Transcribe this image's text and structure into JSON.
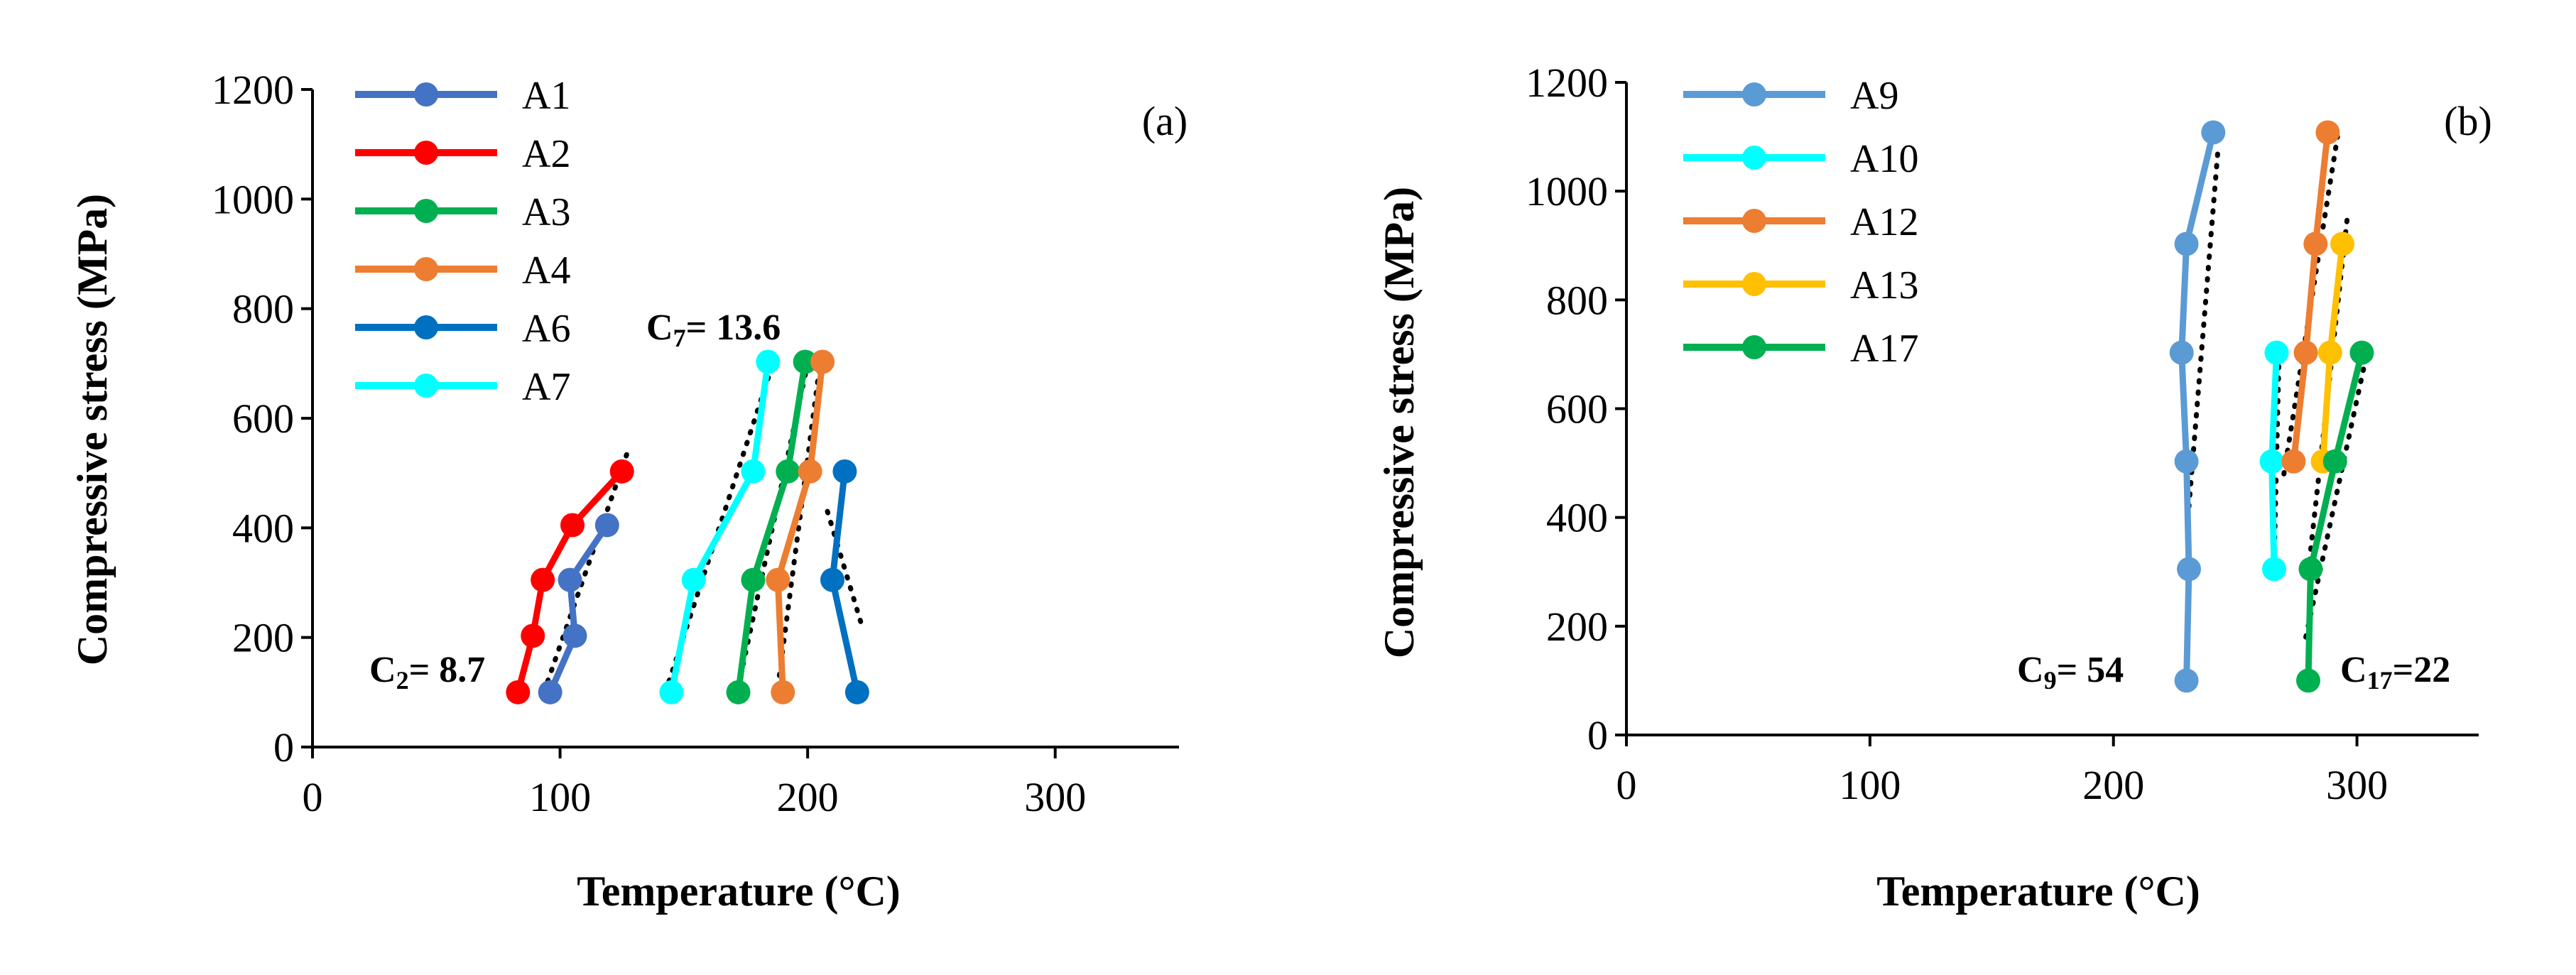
{
  "chart_data": [
    {
      "type": "line",
      "panel_label": "(a)",
      "xlabel": "Temperature (°C)",
      "ylabel": "Compressive stress (MPa)",
      "xlim": [
        0,
        350
      ],
      "ylim": [
        0,
        1200
      ],
      "xticks": [
        "0",
        "100",
        "200",
        "300"
      ],
      "yticks": [
        "0",
        "200",
        "400",
        "600",
        "800",
        "1000",
        "1200"
      ],
      "legend_position": "top-left",
      "series": [
        {
          "name": "A1",
          "color": "#4472C4",
          "x": [
            96,
            106,
            104,
            119
          ],
          "y": [
            100,
            203,
            305,
            405
          ]
        },
        {
          "name": "A2",
          "color": "#FF0000",
          "x": [
            83,
            89,
            93,
            105,
            125
          ],
          "y": [
            100,
            203,
            305,
            405,
            503
          ]
        },
        {
          "name": "A3",
          "color": "#00B050",
          "x": [
            172,
            178,
            192,
            199
          ],
          "y": [
            100,
            305,
            503,
            703
          ]
        },
        {
          "name": "A4",
          "color": "#ED7D31",
          "x": [
            190,
            188,
            201,
            206
          ],
          "y": [
            100,
            305,
            503,
            703
          ]
        },
        {
          "name": "A6",
          "color": "#0070C0",
          "x": [
            220,
            210,
            215
          ],
          "y": [
            100,
            305,
            503
          ]
        },
        {
          "name": "A7",
          "color": "#00FFFF",
          "x": [
            145,
            154,
            178,
            184
          ],
          "y": [
            100,
            305,
            503,
            703
          ]
        }
      ],
      "trendlines": [
        {
          "x": [
            95,
            127
          ],
          "y": [
            120,
            535
          ]
        },
        {
          "x": [
            144,
            186
          ],
          "y": [
            120,
            700
          ]
        },
        {
          "x": [
            172,
            200
          ],
          "y": [
            110,
            700
          ]
        },
        {
          "x": [
            188,
            205
          ],
          "y": [
            110,
            700
          ]
        },
        {
          "x": [
            208,
            222
          ],
          "y": [
            430,
            220
          ]
        }
      ],
      "annotations": [
        {
          "prefix": "C",
          "sub": "2",
          "value": "= 8.7"
        },
        {
          "prefix": "C",
          "sub": "7",
          "value": "= 13.6"
        }
      ]
    },
    {
      "type": "line",
      "panel_label": "(b)",
      "xlabel": "Temperature (°C)",
      "ylabel": "Compressive stress (MPa)",
      "xlim": [
        0,
        350
      ],
      "ylim": [
        0,
        1200
      ],
      "xticks": [
        "0",
        "100",
        "200",
        "300"
      ],
      "yticks": [
        "0",
        "200",
        "400",
        "600",
        "800",
        "1000",
        "1200"
      ],
      "legend_position": "top-left",
      "series": [
        {
          "name": "A9",
          "color": "#5B9BD5",
          "x": [
            230,
            231,
            230,
            228,
            230,
            241
          ],
          "y": [
            100,
            305,
            503,
            703,
            903,
            1108
          ]
        },
        {
          "name": "A10",
          "color": "#00FFFF",
          "x": [
            266,
            265,
            267
          ],
          "y": [
            305,
            503,
            703
          ]
        },
        {
          "name": "A12",
          "color": "#ED7D31",
          "x": [
            274,
            279,
            283,
            288
          ],
          "y": [
            503,
            703,
            903,
            1108
          ]
        },
        {
          "name": "A13",
          "color": "#FFC000",
          "x": [
            286,
            289,
            294
          ],
          "y": [
            503,
            703,
            903
          ]
        },
        {
          "name": "A17",
          "color": "#00B050",
          "x": [
            280,
            281,
            291,
            302
          ],
          "y": [
            100,
            305,
            503,
            703
          ]
        }
      ],
      "trendlines": [
        {
          "x": [
            231,
            243
          ],
          "y": [
            420,
            1080
          ]
        },
        {
          "x": [
            266,
            268
          ],
          "y": [
            320,
            700
          ]
        },
        {
          "x": [
            270,
            292
          ],
          "y": [
            480,
            1100
          ]
        },
        {
          "x": [
            280,
            296
          ],
          "y": [
            300,
            950
          ]
        },
        {
          "x": [
            279,
            304
          ],
          "y": [
            180,
            700
          ]
        }
      ],
      "annotations": [
        {
          "prefix": "C",
          "sub": "9",
          "value": "= 54"
        },
        {
          "prefix": "C",
          "sub": "17",
          "value": "=22"
        }
      ]
    }
  ]
}
